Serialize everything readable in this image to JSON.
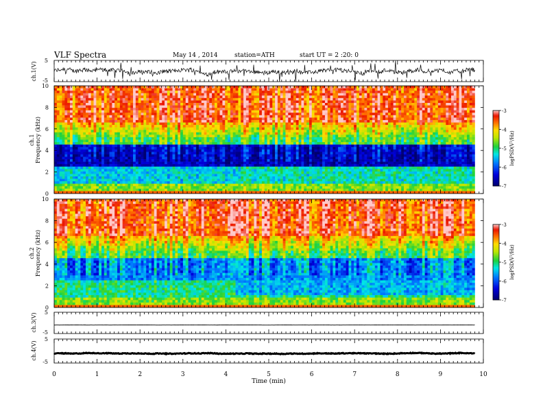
{
  "header": {
    "title": "VLF  Spectra",
    "date": "May 14 , 2014",
    "station": "station=ATH",
    "start": "start  UT  =   2  :20: 0"
  },
  "chart_data": [
    {
      "type": "line",
      "panel": "ch1-waveform",
      "ylabel": "ch.1(V)",
      "yticks": [
        "5",
        "-5"
      ],
      "ylim": [
        -5,
        5
      ],
      "xlim": [
        0,
        10
      ],
      "series": [
        {
          "x_end": 9.8,
          "baseline": 0.0,
          "noise_amplitude": 2.0
        }
      ]
    },
    {
      "type": "heatmap",
      "panel": "ch1-spectrogram",
      "ylabel": "ch.1",
      "ylabel2": "Frequency  (kHz)",
      "yticks": [
        "10",
        "8",
        "6",
        "4",
        "2",
        "0"
      ],
      "ylim": [
        0,
        10
      ],
      "xlim": [
        0,
        10
      ],
      "x_end": 9.8,
      "colorbar": {
        "label": "logPSD(V²/Hz)",
        "ticks": [
          "-3",
          "-4",
          "-5",
          "-6",
          "-7"
        ],
        "range": [
          -7,
          -3
        ]
      }
    },
    {
      "type": "heatmap",
      "panel": "ch2-spectrogram",
      "ylabel": "ch.2",
      "ylabel2": "Frequency  (kHz)",
      "yticks": [
        "10",
        "8",
        "6",
        "4",
        "2",
        "0"
      ],
      "ylim": [
        0,
        10
      ],
      "xlim": [
        0,
        10
      ],
      "x_end": 9.8,
      "colorbar": {
        "label": "logPSD(V²/Hz)",
        "ticks": [
          "-3",
          "-4",
          "-5",
          "-6",
          "-7"
        ],
        "range": [
          -7,
          -3
        ]
      }
    },
    {
      "type": "line",
      "panel": "ch3-waveform",
      "ylabel": "ch.3(V)",
      "yticks": [
        "5",
        "-5"
      ],
      "ylim": [
        -5,
        5
      ],
      "xlim": [
        0,
        10
      ],
      "series": [
        {
          "x_end": 9.8,
          "baseline": -1.0,
          "noise_amplitude": 0.05
        }
      ]
    },
    {
      "type": "line",
      "panel": "ch4-waveform",
      "ylabel": "ch.4(V)",
      "yticks": [
        "5",
        "-5"
      ],
      "ylim": [
        -5,
        5
      ],
      "xlim": [
        0,
        10
      ],
      "series": [
        {
          "x_end": 9.8,
          "baseline": -1.0,
          "noise_amplitude": 0.3
        }
      ]
    }
  ],
  "xaxis": {
    "label": "Time  (min)",
    "ticks": [
      "0",
      "1",
      "2",
      "3",
      "4",
      "5",
      "6",
      "7",
      "8",
      "9",
      "10"
    ],
    "range": [
      0,
      10
    ]
  }
}
